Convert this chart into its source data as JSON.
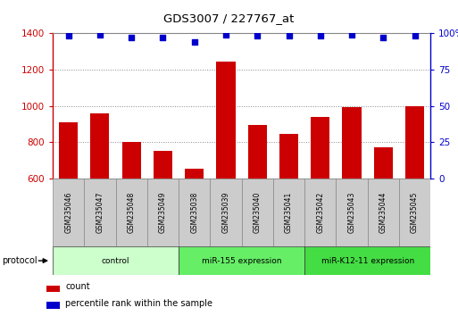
{
  "title": "GDS3007 / 227767_at",
  "samples": [
    "GSM235046",
    "GSM235047",
    "GSM235048",
    "GSM235049",
    "GSM235038",
    "GSM235039",
    "GSM235040",
    "GSM235041",
    "GSM235042",
    "GSM235043",
    "GSM235044",
    "GSM235045"
  ],
  "bar_values": [
    910,
    960,
    800,
    750,
    655,
    1245,
    895,
    845,
    940,
    995,
    770,
    1000
  ],
  "percentile_values": [
    98,
    99,
    97,
    97,
    94,
    99,
    98,
    98,
    98,
    99,
    97,
    98
  ],
  "bar_color": "#cc0000",
  "dot_color": "#0000cc",
  "ylim_left": [
    600,
    1400
  ],
  "ylim_right": [
    0,
    100
  ],
  "yticks_left": [
    600,
    800,
    1000,
    1200,
    1400
  ],
  "yticks_right": [
    0,
    25,
    50,
    75,
    100
  ],
  "groups": [
    {
      "label": "control",
      "start": 0,
      "end": 4,
      "color": "#ccffcc"
    },
    {
      "label": "miR-155 expression",
      "start": 4,
      "end": 8,
      "color": "#66ee66"
    },
    {
      "label": "miR-K12-11 expression",
      "start": 8,
      "end": 12,
      "color": "#44dd44"
    }
  ],
  "legend_count_label": "count",
  "legend_percentile_label": "percentile rank within the sample",
  "protocol_label": "protocol",
  "background_color": "#ffffff",
  "grid_color": "#888888",
  "sample_box_color": "#cccccc",
  "sample_box_edge_color": "#888888"
}
